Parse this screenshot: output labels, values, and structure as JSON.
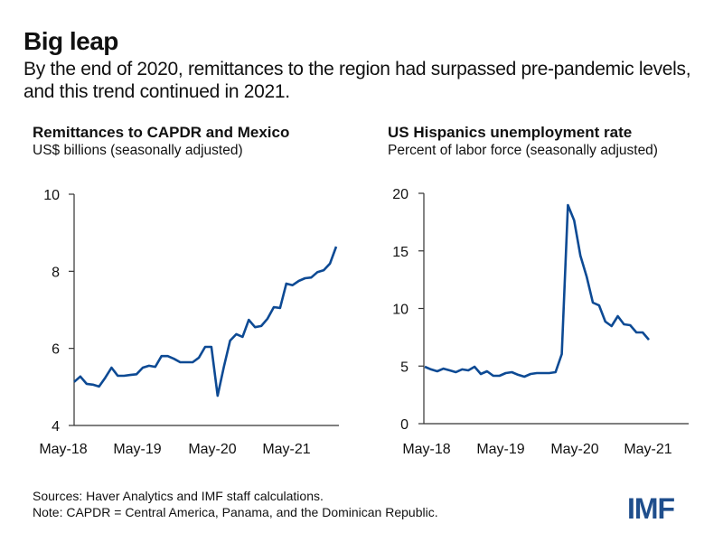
{
  "header": {
    "title": "Big leap",
    "subtitle": "By the end of 2020, remittances to the region had surpassed pre-pandemic levels, and this trend continued in 2021."
  },
  "footer": {
    "sources": "Sources: Haver Analytics and IMF staff calculations.",
    "note": "Note: CAPDR = Central America, Panama, and the Dominican Republic.",
    "logo": "IMF"
  },
  "colors": {
    "line": "#0d4a94",
    "axis": "#333333",
    "logo": "#1f4e8c"
  },
  "chart_data": [
    {
      "type": "line",
      "title": "Remittances to CAPDR and Mexico",
      "subtitle": "US$ billions (seasonally adjusted)",
      "xlabel": "",
      "ylabel": "US$ billions",
      "ylim": [
        4,
        10
      ],
      "yticks": [
        4,
        6,
        8,
        10
      ],
      "ytick_labels": [
        "4",
        "6",
        "8",
        "10"
      ],
      "xtick_labels": [
        "May-18",
        "May-19",
        "May-20",
        "May-21"
      ],
      "grid": false,
      "legend": "none",
      "series": [
        {
          "name": "Remittances",
          "values": [
            5.13,
            5.27,
            5.08,
            5.06,
            5.01,
            5.24,
            5.5,
            5.29,
            5.29,
            5.31,
            5.33,
            5.5,
            5.55,
            5.52,
            5.8,
            5.8,
            5.73,
            5.64,
            5.64,
            5.64,
            5.76,
            6.04,
            6.04,
            4.77,
            5.52,
            6.2,
            6.37,
            6.3,
            6.74,
            6.55,
            6.58,
            6.77,
            7.07,
            7.05,
            7.68,
            7.64,
            7.75,
            7.82,
            7.84,
            7.98,
            8.03,
            8.2,
            8.64
          ]
        }
      ]
    },
    {
      "type": "line",
      "title": "US Hispanics unemployment rate",
      "subtitle": "Percent of labor force (seasonally adjusted)",
      "xlabel": "",
      "ylabel": "Percent",
      "ylim": [
        0,
        20
      ],
      "yticks": [
        0,
        5,
        10,
        15,
        20
      ],
      "ytick_labels": [
        "0",
        "5",
        "10",
        "15",
        "20"
      ],
      "xtick_labels": [
        "May-18",
        "May-19",
        "May-20",
        "May-21"
      ],
      "grid": false,
      "legend": "none",
      "series": [
        {
          "name": "Unemployment rate",
          "values": [
            4.94,
            4.71,
            4.55,
            4.78,
            4.63,
            4.47,
            4.71,
            4.63,
            4.94,
            4.31,
            4.55,
            4.16,
            4.16,
            4.39,
            4.47,
            4.24,
            4.08,
            4.31,
            4.39,
            4.39,
            4.39,
            4.47,
            6.04,
            18.98,
            17.65,
            14.59,
            12.78,
            10.51,
            10.27,
            8.86,
            8.47,
            9.33,
            8.63,
            8.55,
            7.92,
            7.92,
            7.29
          ]
        }
      ]
    }
  ]
}
